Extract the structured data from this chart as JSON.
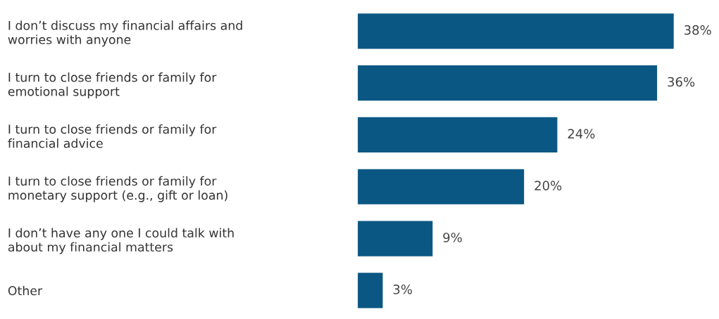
{
  "chart_data": {
    "type": "bar",
    "orientation": "horizontal",
    "categories": [
      "I don’t discuss my financial affairs and\nworries with anyone",
      "I turn to close friends or family for\nemotional support",
      "I turn to close friends or family for\nfinancial advice",
      "I turn to close friends or family for\nmonetary support (e.g., gift or loan)",
      "I don’t have any one I could talk with\nabout my financial matters",
      "Other"
    ],
    "values": [
      38,
      36,
      24,
      20,
      9,
      3
    ],
    "value_labels": [
      "38%",
      "36%",
      "24%",
      "20%",
      "9%",
      "3%"
    ],
    "color": "#0b5783",
    "tick_labels": "y",
    "grid": false,
    "legend": false
  }
}
